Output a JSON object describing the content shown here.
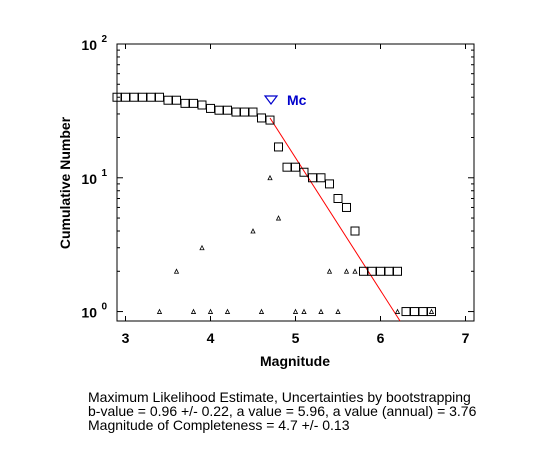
{
  "chart_data": {
    "type": "scatter",
    "xlabel": "Magnitude",
    "ylabel": "Cumulative Number",
    "xlim": [
      2.9,
      7.1
    ],
    "ylim": [
      0.85,
      100
    ],
    "yscale": "log",
    "x_ticks": [
      3,
      4,
      5,
      6,
      7
    ],
    "y_ticks": [
      {
        "value": 1,
        "base": "10",
        "exp": "0"
      },
      {
        "value": 10,
        "base": "10",
        "exp": "1"
      },
      {
        "value": 100,
        "base": "10",
        "exp": "2"
      }
    ],
    "grid": false,
    "series": [
      {
        "marker": "square",
        "color": "#000000",
        "points": [
          {
            "x": 2.9,
            "y": 40
          },
          {
            "x": 3.0,
            "y": 40
          },
          {
            "x": 3.1,
            "y": 40
          },
          {
            "x": 3.2,
            "y": 40
          },
          {
            "x": 3.3,
            "y": 40
          },
          {
            "x": 3.4,
            "y": 40
          },
          {
            "x": 3.5,
            "y": 38
          },
          {
            "x": 3.6,
            "y": 38
          },
          {
            "x": 3.7,
            "y": 36
          },
          {
            "x": 3.8,
            "y": 36
          },
          {
            "x": 3.9,
            "y": 35
          },
          {
            "x": 4.0,
            "y": 33
          },
          {
            "x": 4.1,
            "y": 32
          },
          {
            "x": 4.2,
            "y": 32
          },
          {
            "x": 4.3,
            "y": 31
          },
          {
            "x": 4.4,
            "y": 31
          },
          {
            "x": 4.5,
            "y": 31
          },
          {
            "x": 4.6,
            "y": 28
          },
          {
            "x": 4.7,
            "y": 27
          },
          {
            "x": 4.8,
            "y": 17
          },
          {
            "x": 4.9,
            "y": 12
          },
          {
            "x": 5.0,
            "y": 12
          },
          {
            "x": 5.1,
            "y": 11
          },
          {
            "x": 5.2,
            "y": 10
          },
          {
            "x": 5.3,
            "y": 10
          },
          {
            "x": 5.4,
            "y": 9
          },
          {
            "x": 5.5,
            "y": 7
          },
          {
            "x": 5.6,
            "y": 6
          },
          {
            "x": 5.7,
            "y": 4
          },
          {
            "x": 5.8,
            "y": 2
          },
          {
            "x": 5.9,
            "y": 2
          },
          {
            "x": 6.0,
            "y": 2
          },
          {
            "x": 6.1,
            "y": 2
          },
          {
            "x": 6.2,
            "y": 2
          },
          {
            "x": 6.3,
            "y": 1
          },
          {
            "x": 6.4,
            "y": 1
          },
          {
            "x": 6.5,
            "y": 1
          },
          {
            "x": 6.6,
            "y": 1
          }
        ]
      },
      {
        "marker": "triangle",
        "color": "#000000",
        "points": [
          {
            "x": 3.4,
            "y": 1
          },
          {
            "x": 3.6,
            "y": 2
          },
          {
            "x": 3.8,
            "y": 1
          },
          {
            "x": 3.9,
            "y": 3
          },
          {
            "x": 4.0,
            "y": 1
          },
          {
            "x": 4.2,
            "y": 1
          },
          {
            "x": 4.5,
            "y": 4
          },
          {
            "x": 4.6,
            "y": 1
          },
          {
            "x": 4.7,
            "y": 10
          },
          {
            "x": 4.8,
            "y": 5
          },
          {
            "x": 5.0,
            "y": 1
          },
          {
            "x": 5.1,
            "y": 1
          },
          {
            "x": 5.3,
            "y": 1
          },
          {
            "x": 5.4,
            "y": 2
          },
          {
            "x": 5.5,
            "y": 1
          },
          {
            "x": 5.6,
            "y": 2
          },
          {
            "x": 5.7,
            "y": 2
          },
          {
            "x": 6.2,
            "y": 1
          },
          {
            "x": 6.6,
            "y": 1
          }
        ]
      },
      {
        "marker": "line",
        "color": "#ff0000",
        "points": [
          {
            "x": 4.7,
            "y": 28
          },
          {
            "x": 6.23,
            "y": 0.85
          }
        ]
      }
    ],
    "annotation": {
      "text": "Mc",
      "x": 4.7,
      "y": 40,
      "marker": "inverted-triangle",
      "color": "#0000cc"
    }
  },
  "caption": {
    "line1": "Maximum Likelihood Estimate, Uncertainties by bootstrapping",
    "line2": "b-value = 0.96 +/- 0.22,  a value = 5.96,  a value (annual) = 3.76",
    "line3": "Magnitude of Completeness = 4.7 +/- 0.13"
  }
}
